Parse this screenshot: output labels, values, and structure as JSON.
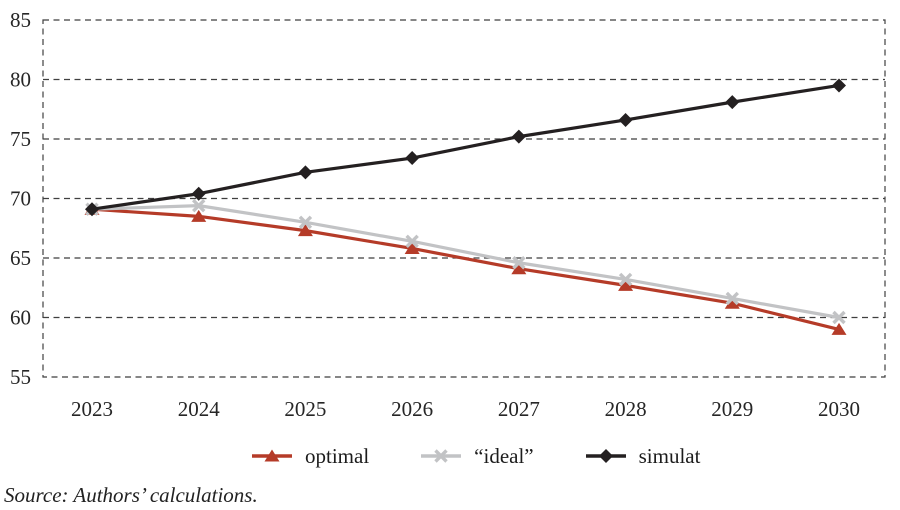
{
  "figure": {
    "source_note": "Source: Authors’ calculations."
  },
  "colors": {
    "grid": "#3f3f3f",
    "tick_text": "#262626",
    "background": "#ffffff"
  },
  "chart_data": {
    "type": "line",
    "title": "",
    "xlabel": "",
    "ylabel": "",
    "x": [
      "2023",
      "2024",
      "2025",
      "2026",
      "2027",
      "2028",
      "2029",
      "2030"
    ],
    "series": [
      {
        "name": "optimal",
        "marker": "triangle",
        "color": "#b53b28",
        "values": [
          69.1,
          68.5,
          67.3,
          65.8,
          64.1,
          62.7,
          61.2,
          59.0
        ]
      },
      {
        "name": "“ideal”",
        "marker": "x",
        "color": "#c2c3c5",
        "values": [
          69.1,
          69.4,
          68.0,
          66.4,
          64.6,
          63.2,
          61.6,
          60.0
        ]
      },
      {
        "name": "simulat",
        "marker": "diamond",
        "color": "#242021",
        "values": [
          69.1,
          70.4,
          72.2,
          73.4,
          75.2,
          76.6,
          78.1,
          79.5
        ]
      }
    ],
    "ylim": [
      55,
      85
    ],
    "yticks": [
      55,
      60,
      65,
      70,
      75,
      80,
      85
    ],
    "grid": "horizontal-dashed",
    "plot_border": "dashed-box",
    "legend_position": "bottom"
  }
}
